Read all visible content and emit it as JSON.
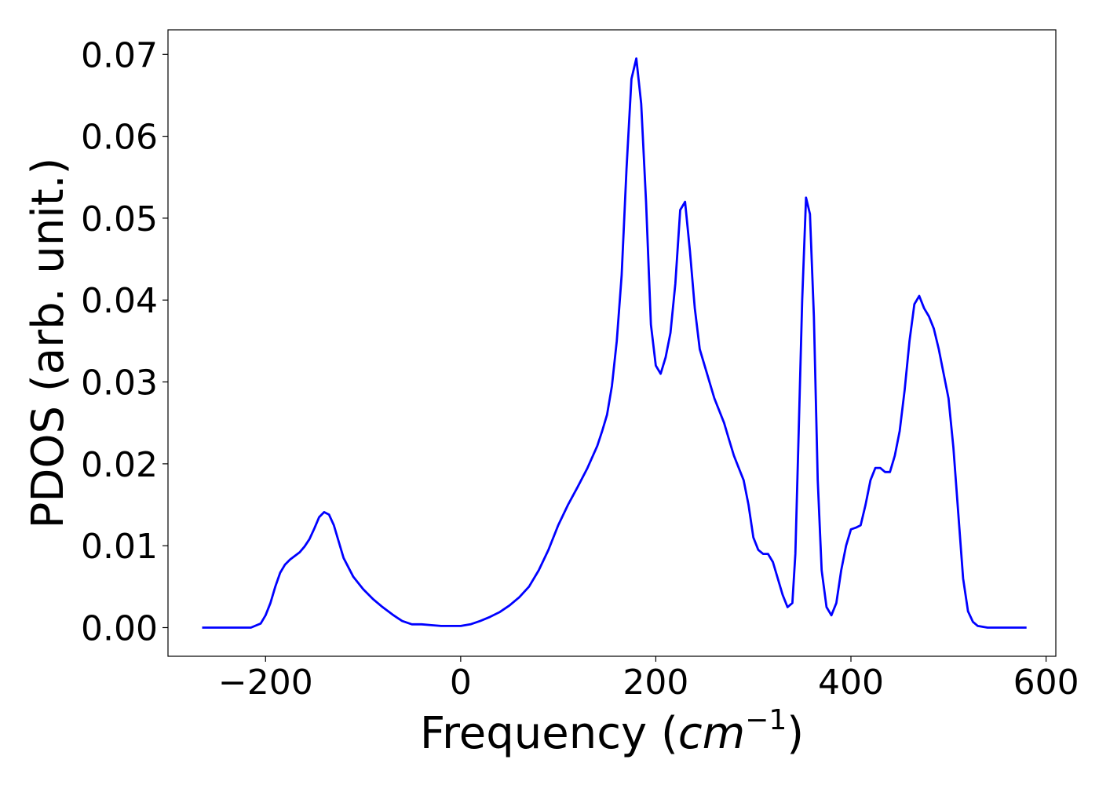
{
  "chart_data": {
    "type": "line",
    "title": "",
    "xlabel": "Frequency (",
    "xlabel_math": "cm",
    "xlabel_sup": "−1",
    "xlabel_close": ")",
    "ylabel": "PDOS (arb. unit.)",
    "xlim": [
      -300,
      610
    ],
    "ylim": [
      -0.0035,
      0.073
    ],
    "xticks": [
      -200,
      0,
      200,
      400,
      600
    ],
    "xtick_labels": [
      "−200",
      "0",
      "200",
      "400",
      "600"
    ],
    "yticks": [
      0,
      0.01,
      0.02,
      0.03,
      0.04,
      0.05,
      0.06,
      0.07
    ],
    "ytick_labels": [
      "0.00",
      "0.01",
      "0.02",
      "0.03",
      "0.04",
      "0.05",
      "0.06",
      "0.07"
    ],
    "grid": false,
    "line_color": "#0000ff",
    "series": [
      {
        "x": [
          -265,
          -215,
          -205,
          -200,
          -195,
          -190,
          -185,
          -180,
          -175,
          -165,
          -160,
          -155,
          -150,
          -145,
          -140,
          -135,
          -130,
          -125,
          -120,
          -110,
          -100,
          -90,
          -80,
          -70,
          -60,
          -50,
          -40,
          -30,
          -20,
          -10,
          0,
          10,
          20,
          30,
          40,
          50,
          60,
          70,
          80,
          90,
          100,
          110,
          120,
          130,
          140,
          145,
          150,
          155,
          160,
          165,
          170,
          175,
          180,
          185,
          190,
          195,
          200,
          205,
          210,
          215,
          220,
          225,
          230,
          235,
          240,
          245,
          250,
          260,
          270,
          275,
          280,
          285,
          290,
          295,
          300,
          305,
          310,
          315,
          320,
          325,
          330,
          335,
          340,
          343,
          346,
          350,
          354,
          358,
          362,
          366,
          370,
          375,
          380,
          385,
          390,
          395,
          400,
          405,
          410,
          415,
          420,
          425,
          430,
          435,
          440,
          445,
          450,
          455,
          460,
          465,
          470,
          475,
          480,
          485,
          490,
          495,
          500,
          505,
          510,
          515,
          520,
          525,
          530,
          540,
          580
        ],
        "y": [
          0.0,
          0.0,
          0.0005,
          0.0015,
          0.003,
          0.005,
          0.0067,
          0.0077,
          0.0083,
          0.0092,
          0.0099,
          0.0108,
          0.0121,
          0.0135,
          0.0141,
          0.0138,
          0.0125,
          0.0105,
          0.0085,
          0.0062,
          0.0047,
          0.0035,
          0.0025,
          0.0016,
          0.0008,
          0.0004,
          0.0004,
          0.0003,
          0.0002,
          0.0002,
          0.0002,
          0.0004,
          0.0008,
          0.0013,
          0.0019,
          0.0027,
          0.0037,
          0.005,
          0.007,
          0.0095,
          0.0125,
          0.015,
          0.0172,
          0.0195,
          0.0222,
          0.024,
          0.026,
          0.0295,
          0.035,
          0.043,
          0.056,
          0.067,
          0.0695,
          0.064,
          0.052,
          0.037,
          0.032,
          0.031,
          0.033,
          0.036,
          0.042,
          0.051,
          0.052,
          0.046,
          0.039,
          0.034,
          0.032,
          0.028,
          0.025,
          0.023,
          0.021,
          0.0195,
          0.018,
          0.015,
          0.011,
          0.0095,
          0.009,
          0.009,
          0.008,
          0.006,
          0.004,
          0.0025,
          0.003,
          0.009,
          0.022,
          0.04,
          0.0525,
          0.0505,
          0.038,
          0.018,
          0.007,
          0.0025,
          0.0015,
          0.003,
          0.007,
          0.01,
          0.012,
          0.0122,
          0.0125,
          0.015,
          0.018,
          0.0195,
          0.0195,
          0.019,
          0.019,
          0.021,
          0.024,
          0.029,
          0.035,
          0.0395,
          0.0405,
          0.039,
          0.038,
          0.0365,
          0.034,
          0.031,
          0.028,
          0.022,
          0.014,
          0.006,
          0.002,
          0.0007,
          0.0002,
          0.0,
          0.0
        ]
      }
    ]
  }
}
